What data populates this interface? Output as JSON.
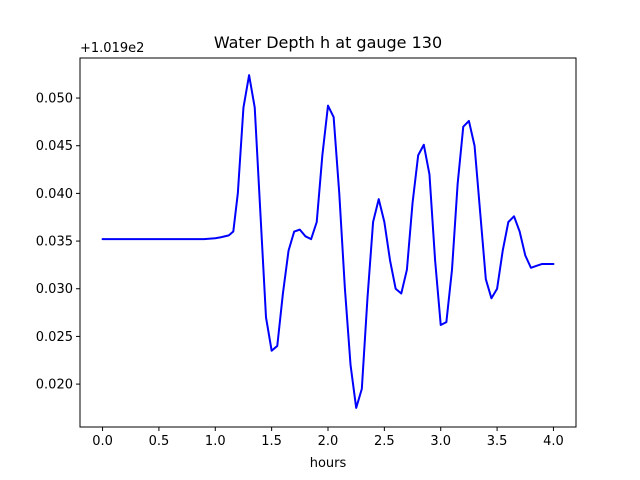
{
  "chart_data": {
    "type": "line",
    "title": "Water Depth h at gauge 130",
    "xlabel": "hours",
    "ylabel": "",
    "y_offset_label": "+1.019e2",
    "xlim": [
      -0.2,
      4.2
    ],
    "ylim": [
      0.0155,
      0.0542
    ],
    "x_ticks": [
      0.0,
      0.5,
      1.0,
      1.5,
      2.0,
      2.5,
      3.0,
      3.5,
      4.0
    ],
    "x_tick_labels": [
      "0.0",
      "0.5",
      "1.0",
      "1.5",
      "2.0",
      "2.5",
      "3.0",
      "3.5",
      "4.0"
    ],
    "y_ticks": [
      0.02,
      0.025,
      0.03,
      0.035,
      0.04,
      0.045,
      0.05
    ],
    "y_tick_labels": [
      "0.020",
      "0.025",
      "0.030",
      "0.035",
      "0.040",
      "0.045",
      "0.050"
    ],
    "grid": false,
    "line_color": "#0000ff",
    "series": [
      {
        "x": [
          0.0,
          0.5,
          0.9,
          1.0,
          1.05,
          1.12,
          1.16,
          1.2,
          1.25,
          1.3,
          1.35,
          1.4,
          1.45,
          1.5,
          1.55,
          1.6,
          1.65,
          1.7,
          1.75,
          1.8,
          1.85,
          1.9,
          1.95,
          2.0,
          2.05,
          2.1,
          2.15,
          2.2,
          2.25,
          2.3,
          2.35,
          2.4,
          2.45,
          2.5,
          2.55,
          2.6,
          2.65,
          2.7,
          2.75,
          2.8,
          2.85,
          2.9,
          2.95,
          3.0,
          3.05,
          3.1,
          3.15,
          3.2,
          3.25,
          3.3,
          3.35,
          3.4,
          3.45,
          3.5,
          3.55,
          3.6,
          3.65,
          3.7,
          3.75,
          3.8,
          3.85,
          3.9,
          3.95,
          4.0
        ],
        "y": [
          0.0352,
          0.0352,
          0.0352,
          0.0353,
          0.0354,
          0.0356,
          0.036,
          0.04,
          0.049,
          0.0524,
          0.049,
          0.038,
          0.027,
          0.0235,
          0.024,
          0.0295,
          0.034,
          0.036,
          0.0362,
          0.0355,
          0.0352,
          0.037,
          0.044,
          0.0492,
          0.048,
          0.04,
          0.03,
          0.022,
          0.0175,
          0.0195,
          0.029,
          0.037,
          0.0394,
          0.037,
          0.033,
          0.03,
          0.0295,
          0.032,
          0.039,
          0.044,
          0.0451,
          0.042,
          0.033,
          0.0262,
          0.0265,
          0.032,
          0.041,
          0.047,
          0.0476,
          0.045,
          0.038,
          0.031,
          0.029,
          0.03,
          0.034,
          0.037,
          0.0376,
          0.036,
          0.0335,
          0.0322,
          0.0324,
          0.0326,
          0.0326,
          0.0326
        ]
      }
    ]
  }
}
